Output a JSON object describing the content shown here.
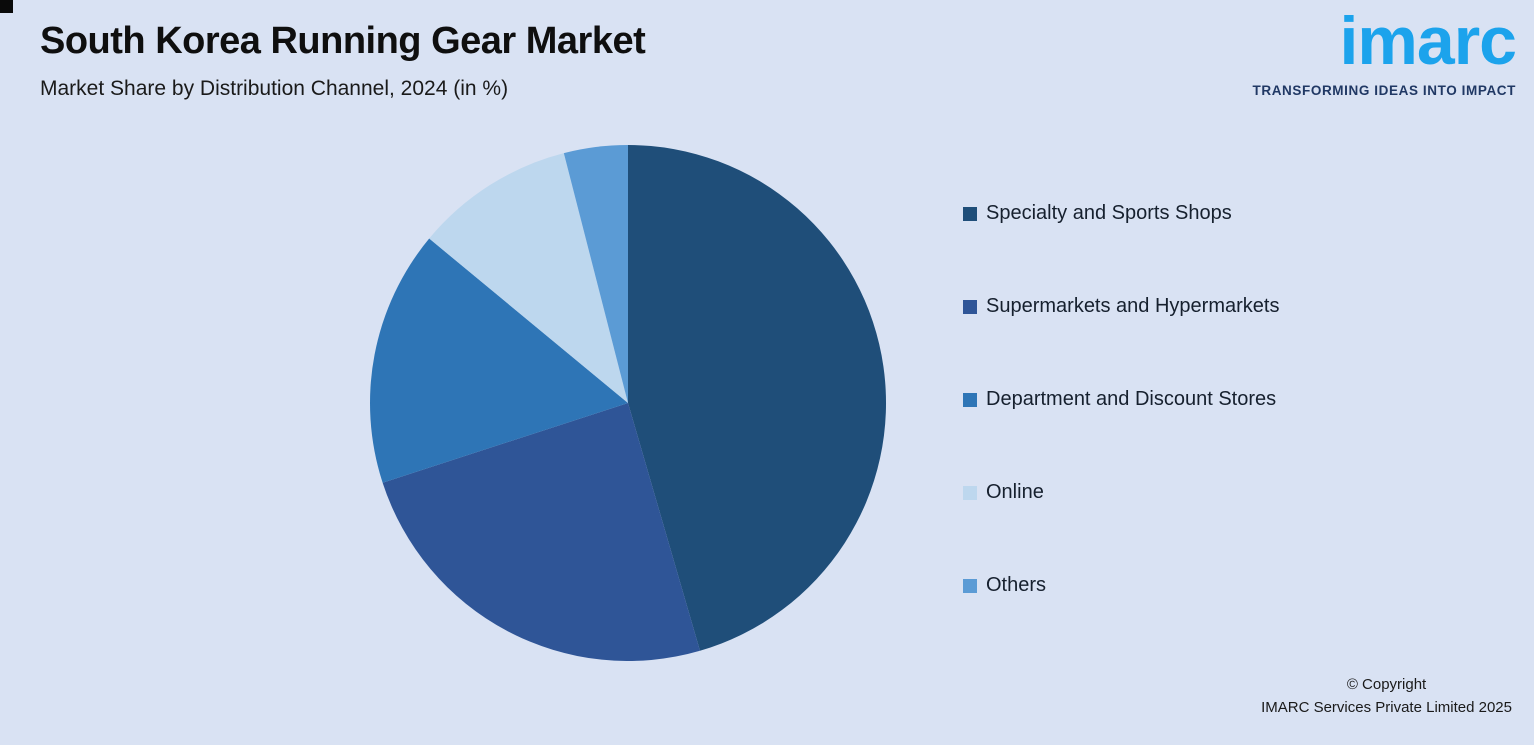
{
  "page": {
    "title": "South Korea Running Gear Market",
    "subtitle": "Market Share by Distribution Channel, 2024 (in %)",
    "background": "#D9E2F3"
  },
  "logo": {
    "text": "imarc",
    "tagline": "TRANSFORMING IDEAS INTO IMPACT",
    "brand_color": "#1CA3EC",
    "tagline_color": "#203864"
  },
  "chart_data": {
    "type": "pie",
    "title": "South Korea Running Gear Market",
    "subtitle": "Market Share by Distribution Channel, 2024 (in %)",
    "start_angle_deg": 0,
    "direction": "clockwise",
    "legend_position": "right",
    "labels": [
      "Specialty and Sports Shops",
      "Supermarkets and Hypermarkets",
      "Department and Discount Stores",
      "Online",
      "Others"
    ],
    "values": [
      45.5,
      24.5,
      16,
      10,
      4
    ],
    "colors": [
      "#1F4E79",
      "#2F5597",
      "#2E75B6",
      "#BDD7EE",
      "#5B9BD5"
    ]
  },
  "footer": {
    "copyright_line1": "© Copyright",
    "copyright_line2": "IMARC Services Private Limited 2025"
  }
}
